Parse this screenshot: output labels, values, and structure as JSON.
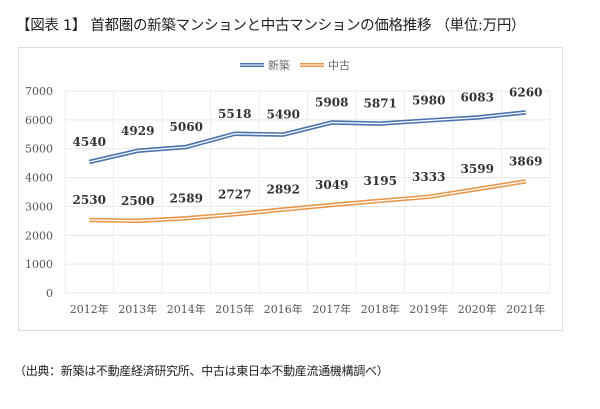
{
  "title": "【図表 1】 首都圏の新築マンションと中古マンションの価格推移 （単位:万円）",
  "source": "（出典：新築は不動産経済研究所、中古は東日本不動産流通機構調べ）",
  "chart_data": {
    "type": "line",
    "title": "首都圏の新築マンションと中古マンションの価格推移",
    "unit": "万円",
    "xlabel": "",
    "ylabel": "",
    "categories": [
      "2012年",
      "2013年",
      "2014年",
      "2015年",
      "2016年",
      "2017年",
      "2018年",
      "2019年",
      "2020年",
      "2021年"
    ],
    "series": [
      {
        "name": "新築",
        "color": "#4a72b0",
        "values": [
          4540,
          4929,
          5060,
          5518,
          5490,
          5908,
          5871,
          5980,
          6083,
          6260
        ]
      },
      {
        "name": "中古",
        "color": "#e8974a",
        "values": [
          2530,
          2500,
          2589,
          2727,
          2892,
          3049,
          3195,
          3333,
          3599,
          3869
        ]
      }
    ],
    "ylim": [
      0,
      7000
    ],
    "yticks": [
      0,
      1000,
      2000,
      3000,
      4000,
      5000,
      6000,
      7000
    ],
    "grid": true,
    "legend": "top-center",
    "data_labels": true
  }
}
